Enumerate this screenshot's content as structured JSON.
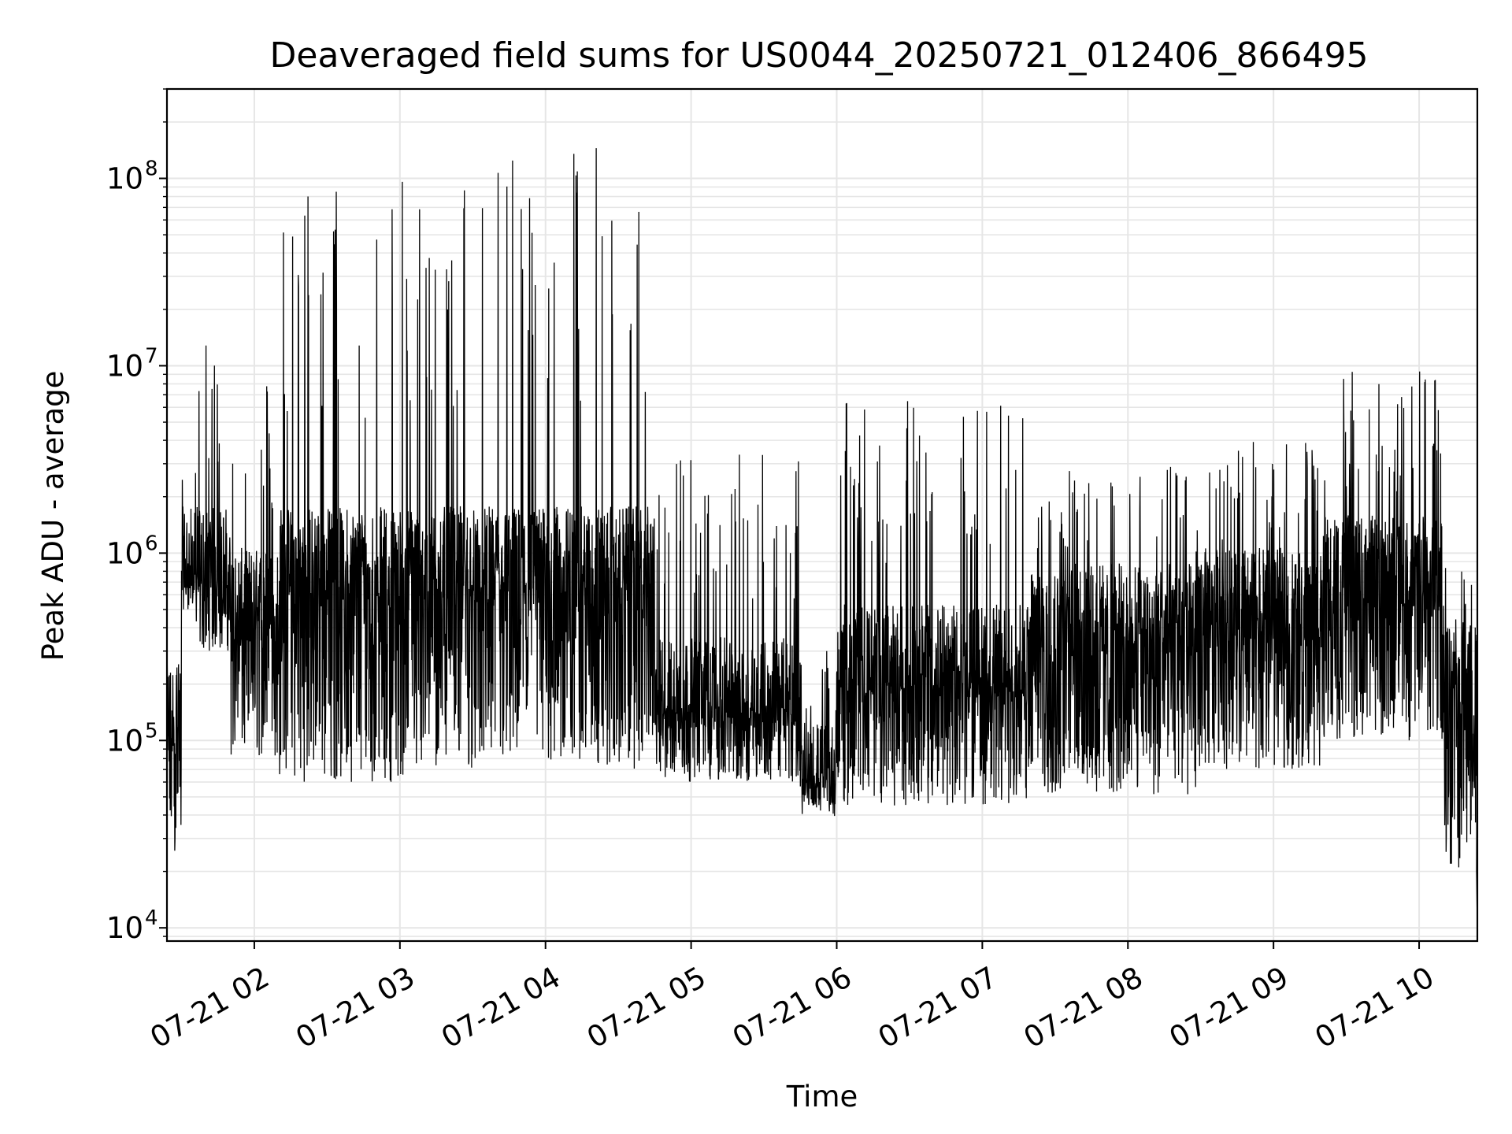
{
  "chart_data": {
    "type": "line",
    "title": "Deaveraged field sums for US0044_20250721_012406_866495",
    "xlabel": "Time",
    "ylabel": "Peak ADU - average",
    "y_scale": "log",
    "ylim": [
      8500,
      300000000
    ],
    "xlim": [
      "2025-07-21 01:24",
      "2025-07-21 10:24"
    ],
    "x_tick_labels": [
      "07-21 02",
      "07-21 03",
      "07-21 04",
      "07-21 05",
      "07-21 06",
      "07-21 07",
      "07-21 08",
      "07-21 09",
      "07-21 10"
    ],
    "y_tick_labels": [
      {
        "value": 10000,
        "base": "10",
        "exp": "4"
      },
      {
        "value": 100000,
        "base": "10",
        "exp": "5"
      },
      {
        "value": 1000000,
        "base": "10",
        "exp": "6"
      },
      {
        "value": 10000000,
        "base": "10",
        "exp": "7"
      },
      {
        "value": 100000000,
        "base": "10",
        "exp": "8"
      }
    ],
    "grid": true,
    "series": [
      {
        "color": "#000000",
        "envelope_note": "approximate per-segment baseline and peak values (data units)",
        "segments": [
          {
            "start": "01:24",
            "end": "01:30",
            "base": 25000,
            "mid": 150000,
            "peak": 300000
          },
          {
            "start": "01:30",
            "end": "01:36",
            "base": 500000,
            "mid": 1000000,
            "peak": 5000000
          },
          {
            "start": "01:36",
            "end": "01:50",
            "base": 300000,
            "mid": 1000000,
            "peak": 13000000
          },
          {
            "start": "01:50",
            "end": "02:10",
            "base": 80000,
            "mid": 600000,
            "peak": 9000000
          },
          {
            "start": "02:10",
            "end": "03:15",
            "base": 60000,
            "mid": 1000000,
            "peak": 100000000
          },
          {
            "start": "03:15",
            "end": "03:50",
            "base": 70000,
            "mid": 1000000,
            "peak": 170000000
          },
          {
            "start": "03:50",
            "end": "04:45",
            "base": 70000,
            "mid": 1000000,
            "peak": 180000000
          },
          {
            "start": "04:45",
            "end": "05:45",
            "base": 60000,
            "mid": 200000,
            "peak": 4000000
          },
          {
            "start": "05:45",
            "end": "06:00",
            "base": 45000,
            "mid": 70000,
            "peak": 300000
          },
          {
            "start": "06:00",
            "end": "07:20",
            "base": 45000,
            "mid": 300000,
            "peak": 6500000
          },
          {
            "start": "07:20",
            "end": "08:30",
            "base": 50000,
            "mid": 500000,
            "peak": 3000000
          },
          {
            "start": "08:30",
            "end": "09:20",
            "base": 70000,
            "mid": 600000,
            "peak": 4000000
          },
          {
            "start": "09:20",
            "end": "10:10",
            "base": 100000,
            "mid": 900000,
            "peak": 9500000
          },
          {
            "start": "10:10",
            "end": "10:24",
            "base": 20000,
            "mid": 250000,
            "peak": 900000
          }
        ]
      }
    ]
  }
}
